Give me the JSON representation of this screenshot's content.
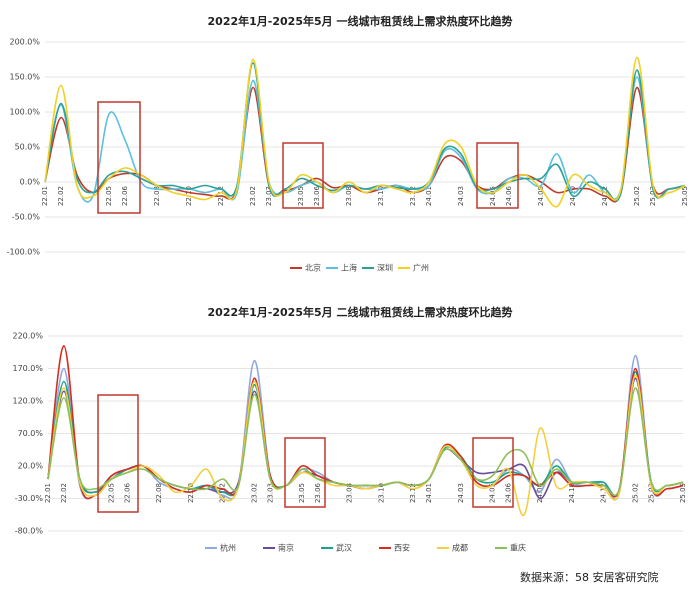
{
  "chart_data": [
    {
      "type": "line",
      "title": "2022年1月-2025年5月 一线城市租赁线上需求热度环比趋势",
      "categories": [
        "22.01",
        "22.02",
        null,
        null,
        "22.05",
        "22.06",
        null,
        "22.08",
        null,
        "22.10",
        null,
        "22.12",
        null,
        "23.02",
        "23.03",
        null,
        "23.05",
        "23.06",
        null,
        "23.08",
        null,
        "23.10",
        null,
        "23.12",
        "24.01",
        null,
        "24.03",
        null,
        "24.05",
        "24.06",
        null,
        "24.08",
        null,
        "24.10",
        null,
        "24.12",
        null,
        "25.02",
        "25.03",
        null,
        "25.05"
      ],
      "series": [
        {
          "name": "北京",
          "color": "#c0392b",
          "values": [
            0,
            92,
            10,
            -15,
            5,
            12,
            10,
            -5,
            -10,
            -15,
            -18,
            -20,
            -10,
            135,
            -5,
            -12,
            -5,
            5,
            -8,
            -5,
            -15,
            -10,
            -5,
            -15,
            -5,
            35,
            30,
            -5,
            -10,
            5,
            10,
            0,
            -15,
            -10,
            -10,
            -20,
            -15,
            135,
            -5,
            -10,
            -5
          ]
        },
        {
          "name": "上海",
          "color": "#5bc0de",
          "values": [
            0,
            110,
            -5,
            -20,
            97,
            60,
            0,
            -10,
            -10,
            -10,
            -15,
            -10,
            -15,
            145,
            0,
            -15,
            -5,
            0,
            -15,
            -5,
            -10,
            -10,
            -5,
            -10,
            -5,
            45,
            35,
            -10,
            -15,
            5,
            5,
            -5,
            40,
            -15,
            10,
            -15,
            -10,
            150,
            -10,
            -10,
            -5
          ]
        },
        {
          "name": "深圳",
          "color": "#2aa198",
          "values": [
            0,
            112,
            5,
            -15,
            10,
            15,
            5,
            -5,
            -5,
            -10,
            -5,
            -10,
            -5,
            170,
            -5,
            -10,
            5,
            -5,
            -12,
            -5,
            -10,
            -5,
            -8,
            -10,
            0,
            48,
            40,
            -8,
            -10,
            0,
            5,
            5,
            25,
            -20,
            0,
            -10,
            -15,
            160,
            -10,
            -10,
            -5
          ]
        },
        {
          "name": "广州",
          "color": "#f2d024",
          "values": [
            0,
            138,
            -5,
            -20,
            5,
            20,
            10,
            -5,
            -15,
            -20,
            -25,
            -15,
            -10,
            175,
            0,
            -15,
            10,
            0,
            -15,
            0,
            -15,
            -5,
            -10,
            -15,
            0,
            55,
            50,
            -5,
            -15,
            0,
            10,
            -10,
            -35,
            10,
            -5,
            -15,
            -10,
            178,
            -5,
            -15,
            -5
          ]
        }
      ],
      "ylim": [
        -100,
        200
      ],
      "yticks": [
        {
          "value": -100,
          "label": "-100.0%"
        },
        {
          "value": -50,
          "label": "-50.0%"
        },
        {
          "value": 0,
          "label": "0.0%"
        },
        {
          "value": 50,
          "label": "50.0%"
        },
        {
          "value": 100,
          "label": "100.0%"
        },
        {
          "value": 150,
          "label": "150.0%"
        },
        {
          "value": 200,
          "label": "200.0%"
        }
      ],
      "grid": true
    },
    {
      "type": "line",
      "title": "2022年1月-2025年5月 二线城市租赁线上需求热度环比趋势",
      "categories": [
        "22.01",
        "22.02",
        null,
        null,
        "22.05",
        "22.06",
        null,
        "22.08",
        null,
        "22.10",
        null,
        "22.12",
        null,
        "23.02",
        "23.03",
        null,
        "23.05",
        "23.06",
        null,
        "23.08",
        null,
        "23.10",
        null,
        "23.12",
        "24.01",
        null,
        "24.03",
        null,
        "24.05",
        "24.06",
        null,
        "24.08",
        null,
        "24.10",
        null,
        "24.12",
        null,
        "25.02",
        "25.03",
        null,
        "25.05"
      ],
      "series": [
        {
          "name": "杭州",
          "color": "#8fa8e0",
          "values": [
            0,
            170,
            -10,
            -25,
            0,
            15,
            20,
            -5,
            -15,
            -20,
            -10,
            -25,
            -10,
            182,
            5,
            -10,
            15,
            10,
            -5,
            -10,
            -15,
            -10,
            -5,
            -15,
            0,
            50,
            30,
            -5,
            -10,
            15,
            5,
            -20,
            30,
            -5,
            -10,
            -5,
            -20,
            190,
            -10,
            -15,
            -10
          ]
        },
        {
          "name": "南京",
          "color": "#6a4c9c",
          "values": [
            0,
            135,
            0,
            -20,
            5,
            15,
            20,
            0,
            -10,
            -15,
            -15,
            -20,
            -5,
            135,
            0,
            -10,
            10,
            5,
            -5,
            -10,
            -10,
            -10,
            -5,
            -10,
            0,
            45,
            30,
            10,
            10,
            15,
            20,
            -30,
            10,
            -5,
            -5,
            -10,
            -15,
            155,
            -5,
            -10,
            -5
          ]
        },
        {
          "name": "武汉",
          "color": "#17a589",
          "values": [
            0,
            150,
            0,
            -20,
            0,
            15,
            20,
            0,
            -10,
            -15,
            -10,
            -20,
            -10,
            145,
            5,
            -10,
            15,
            0,
            -5,
            -10,
            -10,
            -10,
            -5,
            -10,
            0,
            48,
            35,
            0,
            -5,
            10,
            5,
            -10,
            20,
            -5,
            -5,
            -5,
            -15,
            165,
            -5,
            -10,
            -5
          ]
        },
        {
          "name": "西安",
          "color": "#d62d20",
          "values": [
            0,
            205,
            -5,
            -25,
            5,
            15,
            20,
            0,
            -15,
            -20,
            -10,
            -15,
            -10,
            155,
            5,
            -10,
            20,
            5,
            -5,
            -10,
            -15,
            -10,
            -5,
            -10,
            0,
            52,
            35,
            -5,
            -10,
            5,
            5,
            -10,
            10,
            -10,
            -10,
            -10,
            -15,
            170,
            -10,
            -15,
            -10
          ]
        },
        {
          "name": "成都",
          "color": "#f4d03f",
          "values": [
            0,
            140,
            -5,
            -25,
            0,
            10,
            20,
            5,
            -20,
            -10,
            15,
            -30,
            -10,
            150,
            0,
            -10,
            10,
            0,
            -10,
            -10,
            -15,
            -10,
            -5,
            -15,
            0,
            50,
            30,
            -10,
            -10,
            15,
            -55,
            78,
            -10,
            -5,
            -5,
            -15,
            -20,
            160,
            -10,
            -10,
            -5
          ]
        },
        {
          "name": "重庆",
          "color": "#8cbf5a",
          "values": [
            0,
            125,
            0,
            -15,
            0,
            10,
            15,
            0,
            -10,
            -15,
            -15,
            0,
            -10,
            130,
            0,
            -10,
            15,
            0,
            -5,
            -10,
            -10,
            -10,
            -5,
            -10,
            0,
            45,
            30,
            0,
            5,
            40,
            40,
            -10,
            15,
            -5,
            -5,
            -10,
            -15,
            140,
            -5,
            -10,
            -5
          ]
        }
      ],
      "ylim": [
        -80,
        220
      ],
      "yticks": [
        {
          "value": -80,
          "label": "-80.0%"
        },
        {
          "value": -30,
          "label": "-30.0%"
        },
        {
          "value": 20,
          "label": "20.0%"
        },
        {
          "value": 70,
          "label": "70.0%"
        },
        {
          "value": 120,
          "label": "120.0%"
        },
        {
          "value": 170,
          "label": "170.0%"
        },
        {
          "value": 220,
          "label": "220.0%"
        }
      ],
      "grid": true
    }
  ],
  "source": "数据来源：58 安居客研究院"
}
